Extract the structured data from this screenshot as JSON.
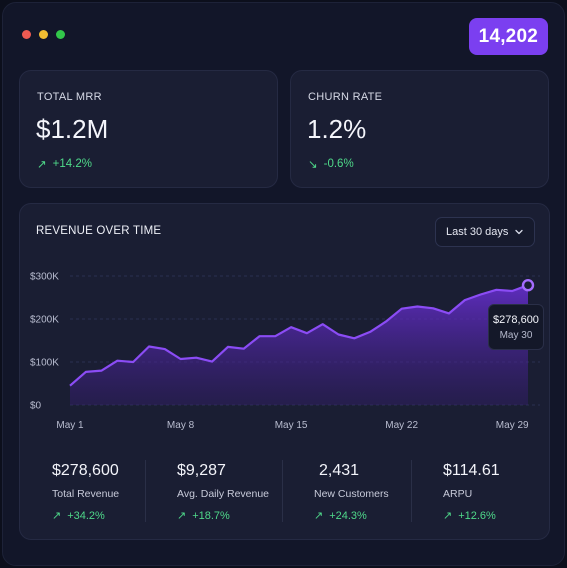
{
  "window": {
    "dots": [
      "#ee5a52",
      "#f0bd32",
      "#32c74a"
    ],
    "badge": "14,202"
  },
  "kpis": [
    {
      "label": "TOTAL MRR",
      "value": "$1.2M",
      "delta_icon": "arrow-up-right-icon",
      "arrow": "↗",
      "delta": "+14.2%"
    },
    {
      "label": "CHURN RATE",
      "value": "1.2%",
      "delta_icon": "arrow-down-right-icon",
      "arrow": "↘",
      "delta": "-0.6%"
    }
  ],
  "chart": {
    "title": "REVENUE OVER TIME",
    "range_select": "Last 30 days",
    "chevron_icon": "chevron-down-icon",
    "tooltip": {
      "value": "$278,600",
      "date": "May 30"
    },
    "accent": "#8b4cf5"
  },
  "chart_data": {
    "type": "area",
    "x": [
      "May 1",
      "May 2",
      "May 3",
      "May 4",
      "May 5",
      "May 6",
      "May 7",
      "May 8",
      "May 9",
      "May 10",
      "May 11",
      "May 12",
      "May 13",
      "May 14",
      "May 15",
      "May 16",
      "May 17",
      "May 18",
      "May 19",
      "May 20",
      "May 21",
      "May 22",
      "May 23",
      "May 24",
      "May 25",
      "May 26",
      "May 27",
      "May 28",
      "May 29",
      "May 30"
    ],
    "x_ticks": [
      "May 1",
      "May 8",
      "May 15",
      "May 22",
      "May 29"
    ],
    "y_ticks": [
      "$0",
      "$100K",
      "$200K",
      "$300K"
    ],
    "ylim": [
      0,
      300000
    ],
    "series": [
      {
        "values": [
          45000,
          77000,
          80000,
          103000,
          100000,
          136000,
          130000,
          107000,
          110000,
          101000,
          135000,
          131000,
          160000,
          160000,
          181000,
          167000,
          188000,
          164000,
          155000,
          170000,
          194000,
          224000,
          229000,
          225000,
          213000,
          244000,
          257000,
          268000,
          265000,
          278600
        ]
      }
    ],
    "grid": true
  },
  "stats": [
    {
      "value": "$278,600",
      "label": "Total Revenue",
      "arrow": "↗",
      "delta": "+34.2%"
    },
    {
      "value": "$9,287",
      "label": "Avg. Daily Revenue",
      "arrow": "↗",
      "delta": "+18.7%"
    },
    {
      "value": "2,431",
      "label": "New Customers",
      "arrow": "↗",
      "delta": "+24.3%"
    },
    {
      "value": "$114.61",
      "label": "ARPU",
      "arrow": "↗",
      "delta": "+12.6%"
    }
  ]
}
